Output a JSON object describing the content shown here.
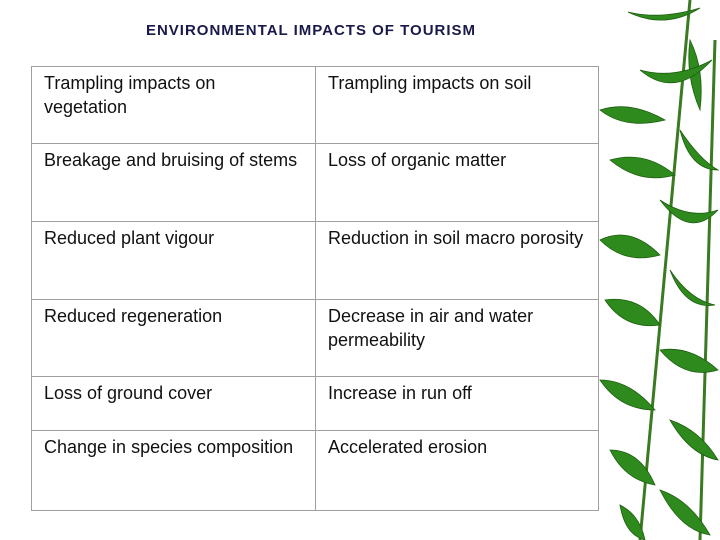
{
  "title": "ENVIRONMENTAL IMPACTS OF TOURISM",
  "table": {
    "rows": [
      [
        "Trampling impacts on vegetation",
        "Trampling impacts on soil"
      ],
      [
        "Breakage and bruising of stems",
        "Loss of organic matter"
      ],
      [
        "Reduced plant vigour",
        "Reduction in soil macro porosity"
      ],
      [
        "Reduced regeneration",
        "Decrease in air and water permeability"
      ],
      [
        "Loss of ground cover",
        "Increase in run off"
      ],
      [
        "Change in species composition",
        "Accelerated erosion"
      ]
    ]
  }
}
